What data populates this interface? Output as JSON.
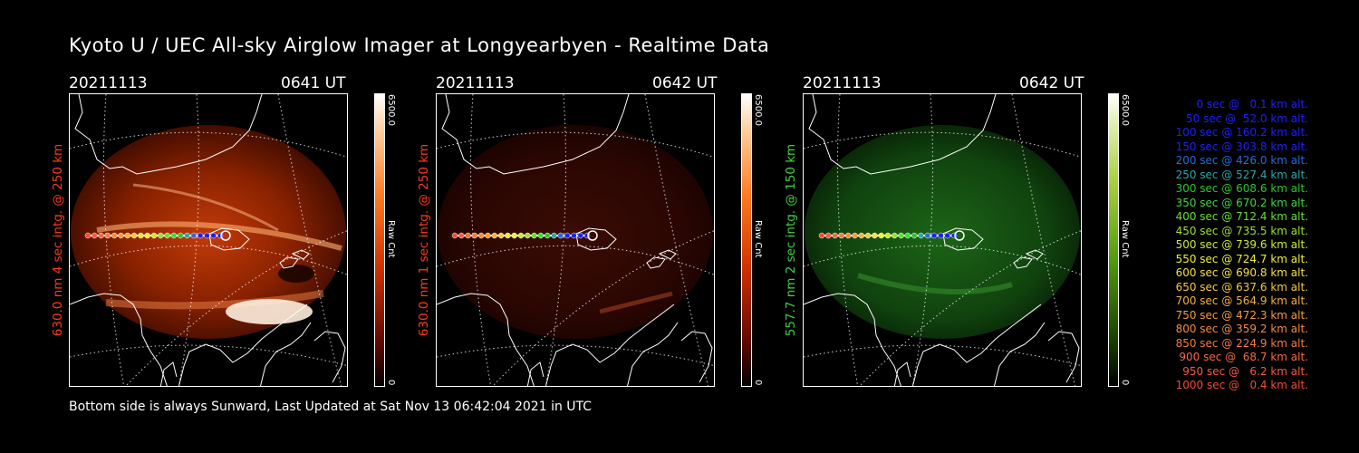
{
  "title": "Kyoto U / UEC All-sky Airglow Imager at Longyearbyen - Realtime Data",
  "footer": "Bottom side is always Sunward, Last Updated at Sat Nov 13 06:42:04 2021 in UTC",
  "panels": [
    {
      "date": "20211113",
      "time": "0641 UT",
      "ylabel": "630.0 nm 4 sec intg. @ 250 km",
      "cbar_max": "6500.0",
      "cbar_min": "0",
      "cbar_unit": "Raw Cnt",
      "label_color": "#ff3a1a",
      "cmap": "red"
    },
    {
      "date": "20211113",
      "time": "0642 UT",
      "ylabel": "630.0 nm 1 sec intg. @ 250 km",
      "cbar_max": "6500.0",
      "cbar_min": "0",
      "cbar_unit": "Raw Cnt",
      "label_color": "#ff3a1a",
      "cmap": "red"
    },
    {
      "date": "20211113",
      "time": "0642 UT",
      "ylabel": "557.7 nm 2 sec intg. @ 150 km",
      "cbar_max": "6500.0",
      "cbar_min": "0",
      "cbar_unit": "Raw Cnt",
      "label_color": "#3fd43f",
      "cmap": "green"
    }
  ],
  "legend": [
    {
      "text": "0 sec @   0.1 km alt.",
      "color": "#1f1fff"
    },
    {
      "text": "50 sec @  52.0 km alt.",
      "color": "#1f1fff"
    },
    {
      "text": "100 sec @ 160.2 km alt.",
      "color": "#1f1fff"
    },
    {
      "text": "150 sec @ 303.8 km alt.",
      "color": "#1f1fff"
    },
    {
      "text": "200 sec @ 426.0 km alt.",
      "color": "#2a6ad8"
    },
    {
      "text": "250 sec @ 527.4 km alt.",
      "color": "#2aa8a8"
    },
    {
      "text": "300 sec @ 608.6 km alt.",
      "color": "#2ec42e"
    },
    {
      "text": "350 sec @ 670.2 km alt.",
      "color": "#3ed83e"
    },
    {
      "text": "400 sec @ 712.4 km alt.",
      "color": "#66e033"
    },
    {
      "text": "450 sec @ 735.5 km alt.",
      "color": "#9ae033"
    },
    {
      "text": "500 sec @ 739.6 km alt.",
      "color": "#cde833"
    },
    {
      "text": "550 sec @ 724.7 km alt.",
      "color": "#f0f033"
    },
    {
      "text": "600 sec @ 690.8 km alt.",
      "color": "#f5e040"
    },
    {
      "text": "650 sec @ 637.6 km alt.",
      "color": "#f5c840"
    },
    {
      "text": "700 sec @ 564.9 km alt.",
      "color": "#f5b040"
    },
    {
      "text": "750 sec @ 472.3 km alt.",
      "color": "#f59a40"
    },
    {
      "text": "800 sec @ 359.2 km alt.",
      "color": "#f58a40"
    },
    {
      "text": "850 sec @ 224.9 km alt.",
      "color": "#f57a40"
    },
    {
      "text": "900 sec @  68.7 km alt.",
      "color": "#f56a40"
    },
    {
      "text": "950 sec @   6.2 km alt.",
      "color": "#f55a40"
    },
    {
      "text": "1000 sec @   0.4 km alt.",
      "color": "#f54a30"
    }
  ]
}
